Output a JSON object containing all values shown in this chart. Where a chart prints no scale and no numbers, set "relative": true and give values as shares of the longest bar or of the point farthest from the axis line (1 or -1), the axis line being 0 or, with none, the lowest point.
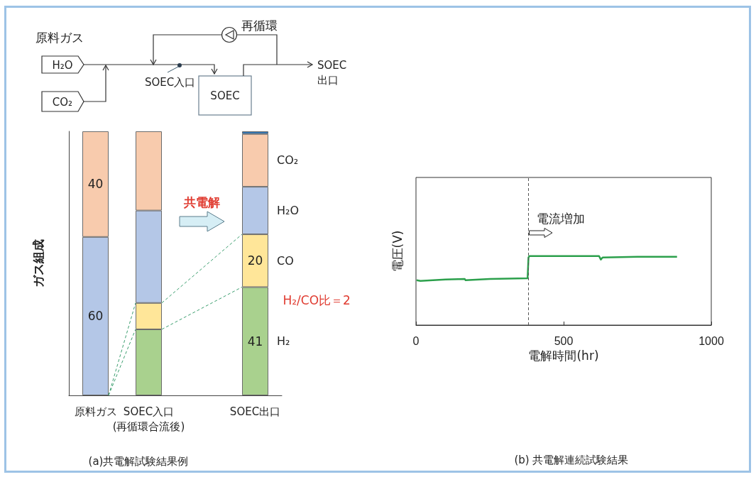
{
  "chart_data": [
    {
      "type": "bar",
      "stacked": true,
      "title": "(a)共電解試験結果例",
      "ylabel": "ガス組成",
      "categories": [
        "原料ガス",
        "SOEC入口\n(再循環合流後)",
        null,
        "SOEC出口"
      ],
      "ylim": [
        0,
        100
      ],
      "tick_labels": "x",
      "series": [
        {
          "name": "H₂",
          "color": "#a9d18e",
          "values": [
            null,
            25,
            null,
            41
          ],
          "value_labels": [
            null,
            null,
            null,
            "41"
          ]
        },
        {
          "name": "CO",
          "color": "#ffe699",
          "values": [
            null,
            10,
            null,
            20
          ],
          "value_labels": [
            null,
            null,
            null,
            "20"
          ]
        },
        {
          "name": "H₂O",
          "color": "#b4c7e7",
          "values": [
            60,
            35,
            null,
            18
          ],
          "value_labels": [
            "60",
            null,
            null,
            null
          ]
        },
        {
          "name": "CO₂",
          "color": "#f8cbad",
          "values": [
            40,
            30,
            null,
            20
          ],
          "value_labels": [
            "40",
            null,
            null,
            null
          ]
        },
        {
          "color": "#2e75b6",
          "values": [
            null,
            null,
            null,
            1
          ]
        }
      ],
      "annotations": [
        "共電解",
        "H₂/CO比＝2",
        "原料ガス",
        "H₂O",
        "CO₂",
        "SOEC入口",
        "SOEC",
        "再循環",
        "SOEC\n出口"
      ]
    },
    {
      "type": "line",
      "title": "(b) 共電解連続試験結果",
      "xlabel": "電解時間(hr)",
      "ylabel": "電圧(V)",
      "relative": true,
      "marker": "none",
      "x": [
        2,
        15,
        100,
        165,
        168,
        250,
        378,
        381,
        384,
        500,
        620,
        626,
        632,
        750,
        884
      ],
      "series": [
        {
          "color": "#2ca04c",
          "values": [
            0.65,
            0.64,
            0.66,
            0.67,
            0.65,
            0.67,
            0.68,
            0.98,
            1,
            1,
            1,
            0.95,
            0.98,
            0.99,
            0.99
          ]
        }
      ],
      "xlim": [
        0,
        1000
      ],
      "xticks": [
        0,
        500,
        1000
      ],
      "ref_lines": [
        {
          "axis": "x",
          "value": 380,
          "line_style": "dashed",
          "color": "#555555"
        }
      ],
      "annotations": [
        "電流増加"
      ]
    }
  ]
}
